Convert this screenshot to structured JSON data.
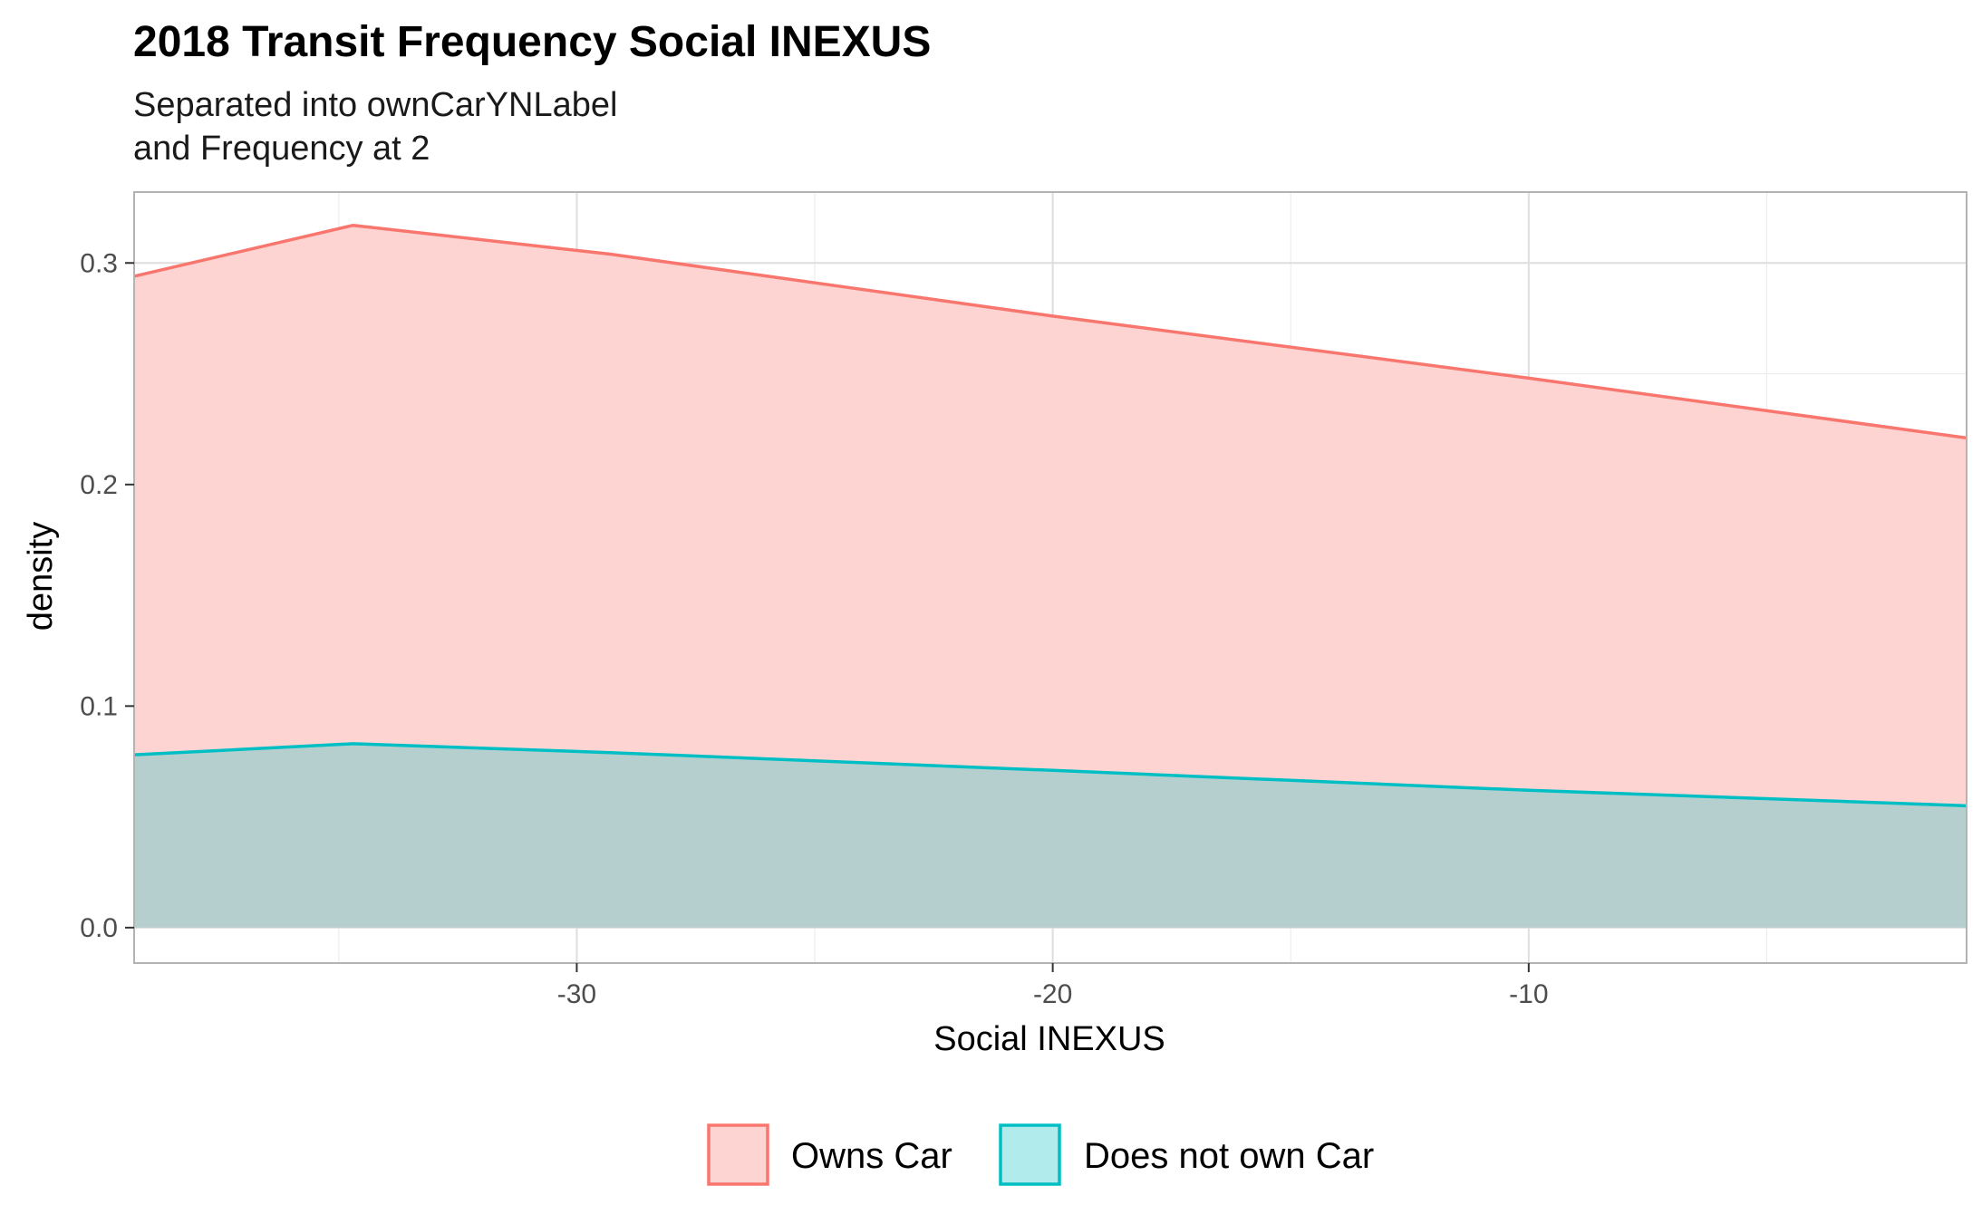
{
  "chart_data": {
    "type": "area",
    "title": "2018 Transit Frequency Social INEXUS",
    "subtitle": [
      "Separated into ownCarYNLabel",
      "and Frequency at 2"
    ],
    "xlabel": "Social INEXUS",
    "ylabel": "density",
    "xlim": [
      -39.3,
      -0.8
    ],
    "ylim": [
      -0.016,
      0.332
    ],
    "x_ticks": [
      -30,
      -20,
      -10
    ],
    "y_ticks": [
      0.0,
      0.1,
      0.2,
      0.3
    ],
    "x_tick_labels": [
      "-30",
      "-20",
      "-10"
    ],
    "y_tick_labels": [
      "0.0",
      "0.1",
      "0.2",
      "0.3"
    ],
    "grid": true,
    "legend_position": "bottom",
    "series": [
      {
        "name": "Owns Car",
        "line_color": "#F8766D",
        "fill_color": "#FDD4D2",
        "x": [
          -39.3,
          -34.7,
          -29.3,
          -20.0,
          -10.0,
          -0.8
        ],
        "y": [
          0.294,
          0.317,
          0.304,
          0.276,
          0.248,
          0.221
        ]
      },
      {
        "name": "Does not own Car",
        "line_color": "#00BFC4",
        "fill_color": "#B2EBEC",
        "overlap_fill_color": "#B5CFCF",
        "x": [
          -39.3,
          -34.7,
          -29.3,
          -20.0,
          -10.0,
          -0.8
        ],
        "y": [
          0.078,
          0.083,
          0.079,
          0.071,
          0.062,
          0.055
        ]
      }
    ]
  }
}
